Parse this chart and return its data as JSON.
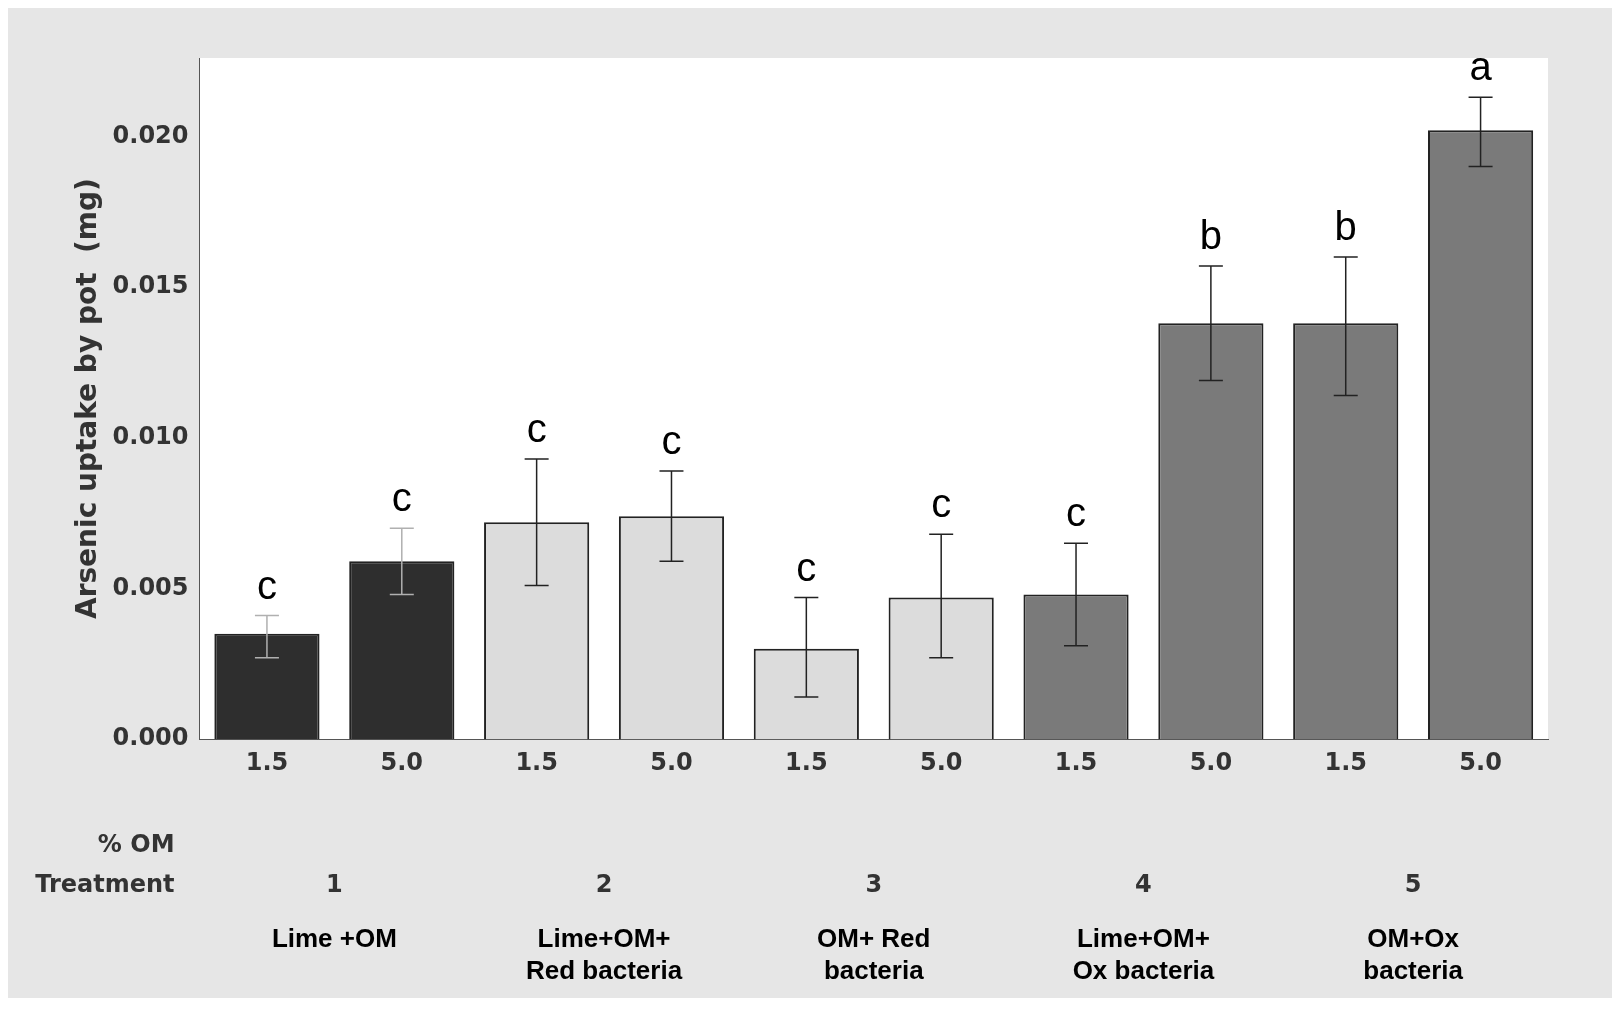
{
  "chart_data": {
    "type": "bar",
    "ylabel": "Arsenic uptake by pot  (mg)",
    "categories": [
      "1.5",
      "5.0",
      "1.5",
      "5.0",
      "1.5",
      "5.0",
      "1.5",
      "5.0",
      "1.5",
      "5.0"
    ],
    "values": [
      0.0035,
      0.0059,
      0.0072,
      0.0074,
      0.003,
      0.0047,
      0.0048,
      0.0138,
      0.0138,
      0.0202
    ],
    "colors": [
      "#2e2e2e",
      "#2e2e2e",
      "#dcdcdc",
      "#dcdcdc",
      "#dcdcdc",
      "#dcdcdc",
      "#7a7a7a",
      "#7a7a7a",
      "#7a7a7a",
      "#7a7a7a"
    ],
    "errors": [
      [
        0.0027,
        0.0041
      ],
      [
        0.0048,
        0.007
      ],
      [
        0.0051,
        0.0093
      ],
      [
        0.0059,
        0.0089
      ],
      [
        0.0014,
        0.0047
      ],
      [
        0.0027,
        0.0068
      ],
      [
        0.0031,
        0.0065
      ],
      [
        0.0119,
        0.0157
      ],
      [
        0.0114,
        0.016
      ],
      [
        0.019,
        0.0213
      ]
    ],
    "value_labels": [
      "c",
      "c",
      "c",
      "c",
      "c",
      "c",
      "c",
      "b",
      "b",
      "a"
    ],
    "ylim": [
      0,
      0.0226
    ],
    "yticks": [
      {
        "value": 0,
        "label": "0.000"
      },
      {
        "value": 0.005,
        "label": "0.005"
      },
      {
        "value": 0.01,
        "label": "0.010"
      },
      {
        "value": 0.015,
        "label": "0.015"
      },
      {
        "value": 0.02,
        "label": "0.020"
      }
    ],
    "grid": false,
    "legend": false,
    "annotations": [
      "% OM",
      "Treatment",
      "1",
      "2",
      "3",
      "4",
      "5",
      "Lime +OM",
      "Lime+OM+\nRed bacteria",
      "OM+ Red\nbacteria",
      "Lime+OM+\nOx bacteria",
      "OM+Ox\nbacteria"
    ]
  }
}
